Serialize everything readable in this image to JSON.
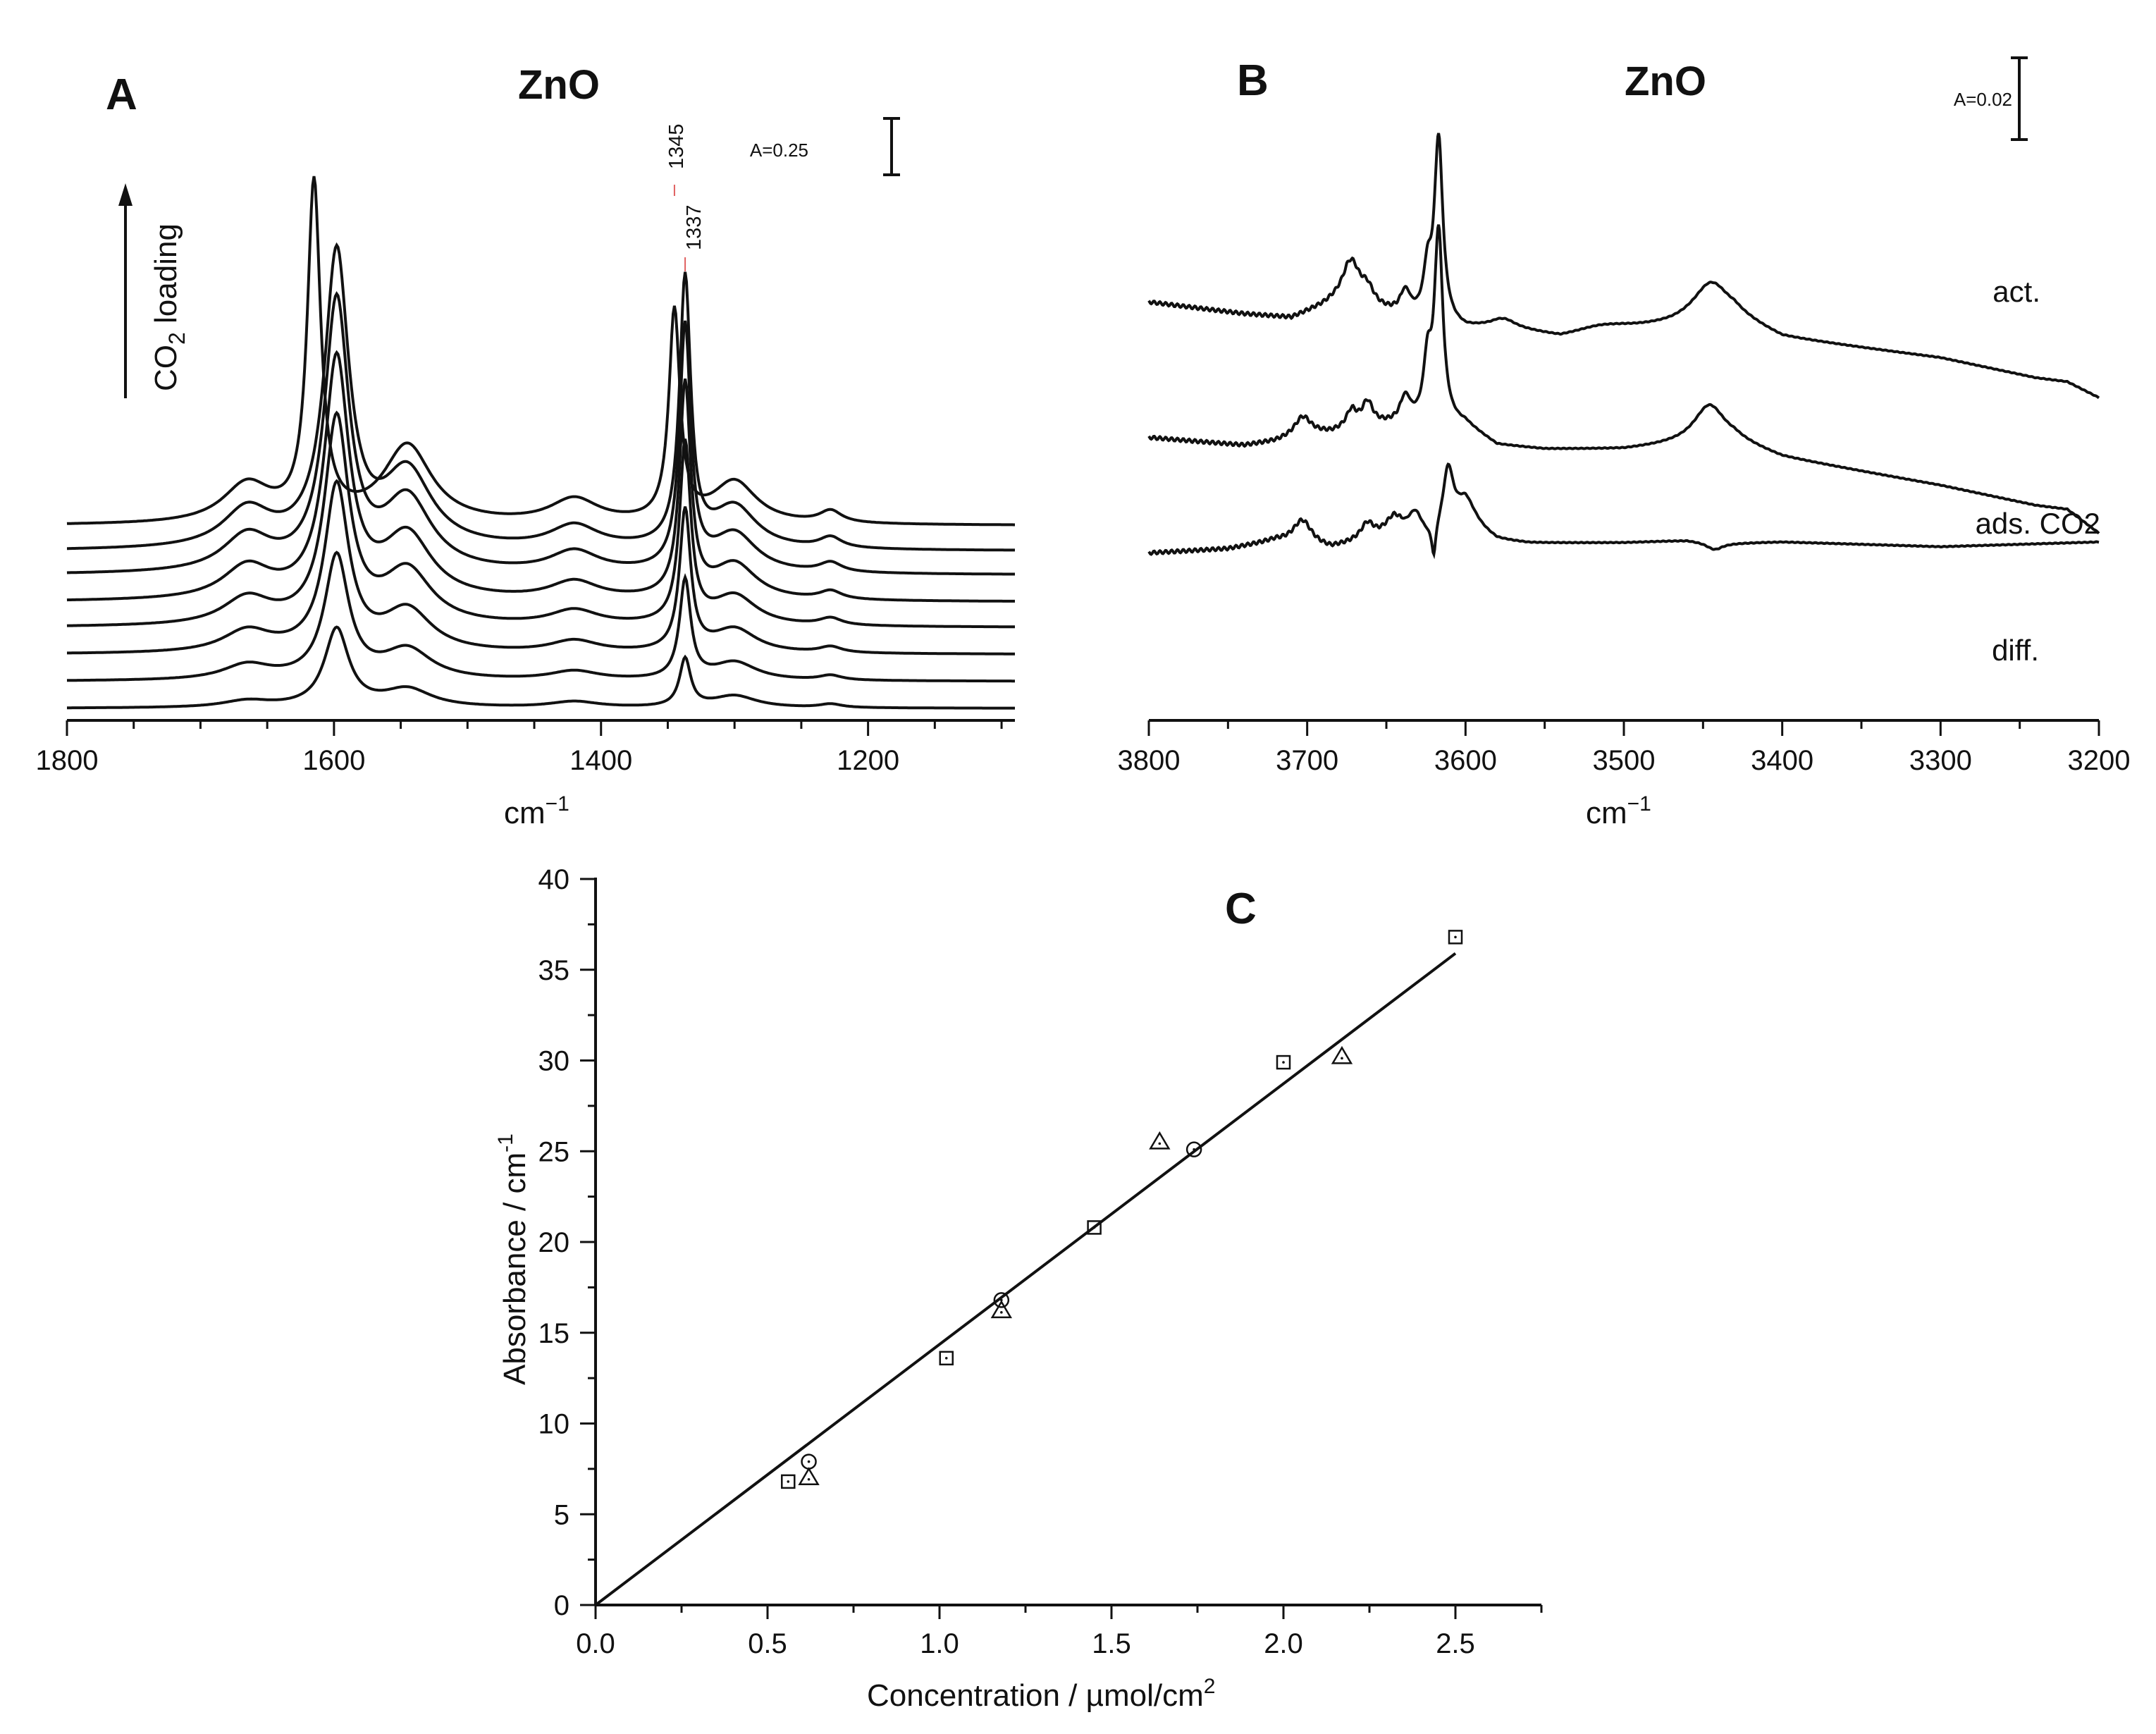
{
  "chart_data": [
    {
      "panel": "A",
      "type": "line",
      "title": "ZnO",
      "panel_label": "A",
      "xlabel": "cm",
      "xlabel_sup": "−1",
      "xlim": [
        1800,
        1090
      ],
      "x_ticks": [
        1800,
        1600,
        1400,
        1200
      ],
      "scale_bar_label": "A=0.25",
      "loading_label": "CO",
      "loading_sub": "2",
      "loading_suffix": " loading",
      "peak_labels": [
        {
          "text": "1345",
          "x": 1345
        },
        {
          "text": "1337",
          "x": 1337
        }
      ],
      "n_series": 8,
      "baselines": [
        0.0,
        0.09,
        0.18,
        0.27,
        0.355,
        0.445,
        0.525,
        0.61
      ],
      "peak_heights": {
        "1665": [
          0.022,
          0.05,
          0.072,
          0.09,
          0.108,
          0.12,
          0.128,
          0.13
        ],
        "1598": [
          0.26,
          0.41,
          0.55,
          0.68,
          0.79,
          0.89,
          0.97,
          0.0
        ],
        "1615": [
          0,
          0,
          0,
          0,
          0,
          0,
          0,
          1.12
        ],
        "1545": [
          0.06,
          0.1,
          0.14,
          0.18,
          0.21,
          0.24,
          0.25,
          0.26
        ],
        "1420": [
          0.02,
          0.03,
          0.04,
          0.05,
          0.06,
          0.07,
          0.075,
          0.08
        ],
        "1337": [
          0.16,
          0.33,
          0.47,
          0.6,
          0.71,
          0.81,
          0.89,
          0.0
        ],
        "1345": [
          0,
          0,
          0,
          0,
          0,
          0,
          0,
          0.7
        ],
        "1300": [
          0.04,
          0.06,
          0.08,
          0.1,
          0.12,
          0.13,
          0.14,
          0.14
        ],
        "1228": [
          0.012,
          0.016,
          0.02,
          0.024,
          0.028,
          0.032,
          0.036,
          0.04
        ]
      }
    },
    {
      "panel": "B",
      "type": "line",
      "title": "ZnO",
      "panel_label": "B",
      "xlabel": "cm",
      "xlabel_sup": "−1",
      "xlim": [
        3800,
        3200
      ],
      "x_ticks": [
        3800,
        3700,
        3600,
        3500,
        3400,
        3300,
        3200
      ],
      "scale_bar_label": "A=0.02",
      "series": [
        {
          "name": "act.",
          "key_points": [
            [
              3800,
              0.52
            ],
            [
              3672,
              0.55
            ],
            [
              3638,
              0.53
            ],
            [
              3617,
              0.76
            ],
            [
              3600,
              0.52
            ],
            [
              3445,
              0.53
            ],
            [
              3320,
              0.49
            ],
            [
              3200,
              0.42
            ]
          ]
        },
        {
          "name": "ads. CO2",
          "key_points": [
            [
              3800,
              0.36
            ],
            [
              3703,
              0.37
            ],
            [
              3662,
              0.39
            ],
            [
              3638,
              0.38
            ],
            [
              3617,
              0.61
            ],
            [
              3570,
              0.35
            ],
            [
              3445,
              0.38
            ],
            [
              3300,
              0.31
            ],
            [
              3200,
              0.26
            ]
          ]
        },
        {
          "name": "diff.",
          "key_points": [
            [
              3800,
              0.21
            ],
            [
              3703,
              0.25
            ],
            [
              3632,
              0.25
            ],
            [
              3619,
              0.2
            ],
            [
              3612,
              0.28
            ],
            [
              3580,
              0.22
            ],
            [
              3460,
              0.225
            ],
            [
              3443,
              0.215
            ],
            [
              3200,
              0.22
            ]
          ]
        }
      ]
    },
    {
      "panel": "C",
      "type": "scatter",
      "panel_label": "C",
      "xlabel": "Concentration / µmol/cm",
      "xlabel_sup": "2",
      "ylabel": "Absorbance / cm",
      "ylabel_sup": "-1",
      "xlim": [
        0,
        2.75
      ],
      "ylim": [
        0,
        40
      ],
      "x_ticks": [
        "0.0",
        "0.5",
        "1.0",
        "1.5",
        "2.0",
        "2.5"
      ],
      "y_ticks": [
        "0",
        "5",
        "10",
        "15",
        "20",
        "25",
        "30",
        "35",
        "40"
      ],
      "series": [
        {
          "name": "squares",
          "marker": "square",
          "x": [
            0.56,
            1.02,
            1.45,
            2.0,
            2.5
          ],
          "y": [
            6.8,
            13.6,
            20.8,
            29.9,
            36.8
          ]
        },
        {
          "name": "circles",
          "marker": "circle",
          "x": [
            0.62,
            1.18,
            1.74
          ],
          "y": [
            7.9,
            16.8,
            25.1
          ]
        },
        {
          "name": "triangles",
          "marker": "triangle",
          "x": [
            0.62,
            1.18,
            1.64,
            2.17
          ],
          "y": [
            7.0,
            16.2,
            25.5,
            30.2
          ]
        }
      ],
      "fit_line": {
        "x": [
          0,
          2.5
        ],
        "y": [
          0,
          35.9
        ]
      }
    }
  ]
}
